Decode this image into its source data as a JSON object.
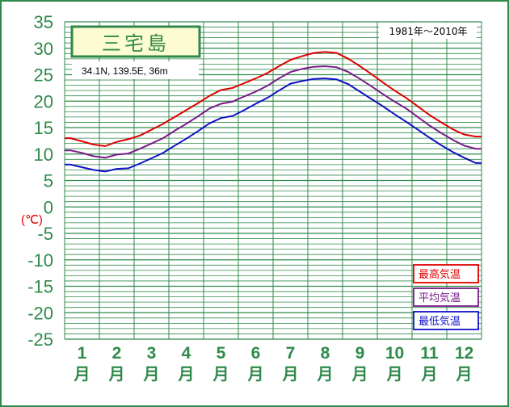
{
  "title": "三宅島",
  "station_info": "34.1N,  139.5E,  36m",
  "period": "1981年〜2010年",
  "unit_label": "(℃)",
  "colors": {
    "grid": "#2f8a4a",
    "axis_text": "#2f8a4a",
    "unit": "#e00000"
  },
  "chart_data": {
    "type": "line",
    "x": [
      "1月上",
      "1月中",
      "1月下",
      "2月上",
      "2月中",
      "2月下",
      "3月上",
      "3月中",
      "3月下",
      "4月上",
      "4月中",
      "4月下",
      "5月上",
      "5月中",
      "5月下",
      "6月上",
      "6月中",
      "6月下",
      "7月上",
      "7月中",
      "7月下",
      "8月上",
      "8月中",
      "8月下",
      "9月上",
      "9月中",
      "9月下",
      "10月上",
      "10月中",
      "10月下",
      "11月上",
      "11月中",
      "11月下",
      "12月上",
      "12月中",
      "12月下"
    ],
    "categories": [
      "1",
      "2",
      "3",
      "4",
      "5",
      "6",
      "7",
      "8",
      "9",
      "10",
      "11",
      "12"
    ],
    "month_suffix": "月",
    "ylim": [
      -25,
      35
    ],
    "yticks": [
      35,
      30,
      25,
      20,
      15,
      10,
      5,
      0,
      -5,
      -10,
      -15,
      -20,
      -25
    ],
    "grid": true,
    "legend_position": "bottom-right",
    "series": [
      {
        "name": "最高気温",
        "color": "#e00000",
        "values": [
          13.0,
          12.4,
          11.8,
          11.5,
          12.3,
          12.8,
          13.5,
          14.6,
          15.7,
          17.0,
          18.3,
          19.6,
          21.0,
          22.1,
          22.5,
          23.4,
          24.3,
          25.3,
          26.6,
          27.8,
          28.5,
          29.1,
          29.3,
          29.1,
          28.0,
          26.6,
          25.1,
          23.5,
          22.0,
          20.6,
          19.0,
          17.4,
          16.0,
          14.7,
          13.7,
          13.3
        ]
      },
      {
        "name": "平均気温",
        "color": "#7a1a8a",
        "values": [
          10.7,
          10.2,
          9.6,
          9.3,
          9.9,
          10.1,
          11.0,
          12.0,
          13.0,
          14.4,
          15.7,
          17.1,
          18.6,
          19.5,
          19.9,
          20.9,
          21.8,
          22.9,
          24.3,
          25.5,
          26.1,
          26.5,
          26.6,
          26.4,
          25.5,
          24.2,
          22.8,
          21.3,
          19.9,
          18.6,
          17.0,
          15.4,
          14.0,
          12.7,
          11.6,
          11.0
        ]
      },
      {
        "name": "最低気温",
        "color": "#1010c8",
        "values": [
          8.0,
          7.5,
          7.0,
          6.7,
          7.2,
          7.3,
          8.2,
          9.2,
          10.2,
          11.6,
          12.9,
          14.3,
          15.8,
          16.8,
          17.2,
          18.3,
          19.5,
          20.6,
          22.0,
          23.3,
          23.8,
          24.2,
          24.3,
          24.1,
          23.2,
          21.8,
          20.4,
          19.0,
          17.5,
          16.1,
          14.6,
          13.1,
          11.7,
          10.4,
          9.3,
          8.3
        ]
      }
    ]
  }
}
